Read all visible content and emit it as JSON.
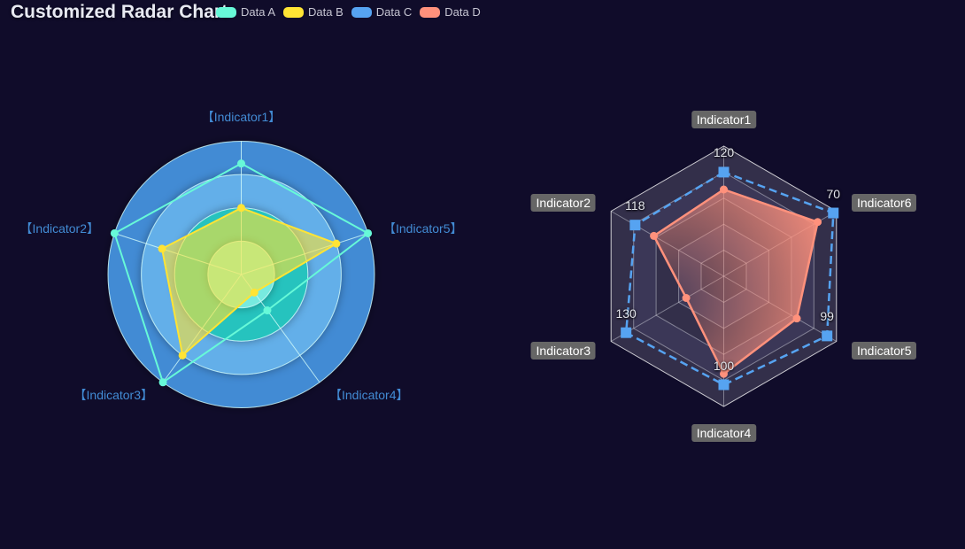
{
  "background": "#100C2A",
  "title": {
    "text": "Customized Radar Chart",
    "color": "#E8EAF2"
  },
  "legend": {
    "items": [
      {
        "label": "Data A",
        "color": "#67F9D8"
      },
      {
        "label": "Data B",
        "color": "#FFE434"
      },
      {
        "label": "Data C",
        "color": "#56A3F1"
      },
      {
        "label": "Data D",
        "color": "#FF917C"
      }
    ]
  },
  "chart_data": [
    {
      "type": "radar",
      "id": "left-radar",
      "shape": "circle",
      "split_number": 4,
      "axis_label_color": "#428BD4",
      "grid_line_color": "rgba(211,253,250,0.8)",
      "split_area_colors_inner_to_outer": [
        "#77EADF",
        "#26C3BE",
        "#64AFE9",
        "#428BD4"
      ],
      "indicators": [
        {
          "label": "【Indicator1】"
        },
        {
          "label": "【Indicator2】"
        },
        {
          "label": "【Indicator3】"
        },
        {
          "label": "【Indicator4】"
        },
        {
          "label": "【Indicator5】"
        }
      ],
      "series": [
        {
          "name": "Data A",
          "color": "#67F9D8",
          "fill": "none",
          "symbol": "circle",
          "line_style": "solid",
          "values_fraction": [
            0.833,
            1,
            1,
            0.333,
            1
          ]
        },
        {
          "name": "Data B",
          "color": "#FFE434",
          "fill": "rgba(255,228,52,0.6)",
          "symbol": "circle",
          "line_style": "solid",
          "values_fraction": [
            0.5,
            0.625,
            0.75,
            0.167,
            0.75
          ]
        }
      ]
    },
    {
      "type": "radar",
      "id": "right-radar",
      "shape": "polygon",
      "split_number": 5,
      "axis_label_color": "#FFFFFF",
      "axis_label_bg": "#666666",
      "grid_line_color": "rgba(235,238,245,0.42)",
      "outer_line_color": "rgba(255,255,255,0.78)",
      "split_area_colors_alt": [
        "#332F4A",
        "#3B3757"
      ],
      "indicators": [
        {
          "label": "Indicator1",
          "max": 150
        },
        {
          "label": "Indicator2",
          "max": 150
        },
        {
          "label": "Indicator3",
          "max": 150
        },
        {
          "label": "Indicator4",
          "max": 120
        },
        {
          "label": "Indicator5",
          "max": 108
        },
        {
          "label": "Indicator6",
          "max": 72
        }
      ],
      "series": [
        {
          "name": "Data C",
          "color": "#56A3F1",
          "fill": "none",
          "symbol": "square",
          "symbol_size": 12,
          "line_style": "dashed",
          "value_labels_shown": true,
          "values": [
            120,
            118,
            130,
            100,
            99,
            70
          ]
        },
        {
          "name": "Data D",
          "color": "#FF917C",
          "symbol": "circle",
          "line_style": "solid",
          "fill_gradient": [
            "rgba(255,145,124,0.1)",
            "rgba(255,145,124,0.9)"
          ],
          "values": [
            100,
            93,
            50,
            90,
            70,
            60
          ]
        }
      ]
    }
  ]
}
